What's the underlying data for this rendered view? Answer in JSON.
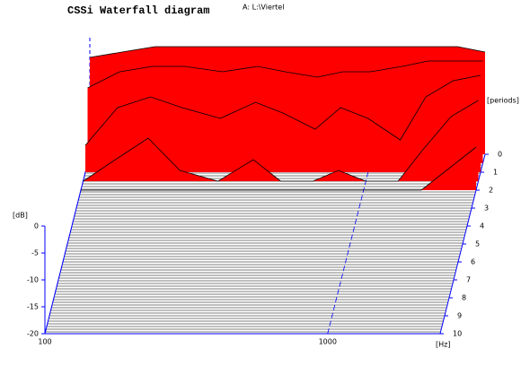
{
  "chart_data": {
    "type": "waterfall",
    "title": "CSSi Waterfall diagram",
    "subtitle": "A: L:\\Viertel",
    "x_label": "[Hz]",
    "y_label": "[dB]",
    "z_label": "[periods]",
    "x_scale": "log",
    "x": [
      100,
      130,
      170,
      220,
      300,
      400,
      500,
      650,
      800,
      1000,
      1300,
      1600,
      2000,
      2500
    ],
    "xlim": [
      100,
      2500
    ],
    "xticks": [
      100,
      1000
    ],
    "ylim": [
      -20,
      0
    ],
    "yticks": [
      -20,
      -15,
      -10,
      -5,
      0
    ],
    "zlim": [
      0,
      10
    ],
    "zticks": [
      0,
      1,
      2,
      3,
      4,
      5,
      6,
      7,
      8,
      9,
      10
    ],
    "color": "#ff0000",
    "axis_color": "#0000ff",
    "slices": [
      {
        "period": 0,
        "values": [
          -2,
          -1,
          0,
          0,
          0,
          0,
          0,
          0,
          0,
          0,
          0,
          0,
          0,
          -1
        ]
      },
      {
        "period": 0.5,
        "values": [
          -6,
          -3,
          -2,
          -2,
          -3,
          -2,
          -3,
          -4,
          -3,
          -3,
          -2,
          -1,
          -1,
          -1
        ]
      },
      {
        "period": 1,
        "values": [
          -15,
          -8,
          -6,
          -8,
          -10,
          -7,
          -9,
          -12,
          -8,
          -10,
          -14,
          -6,
          -3,
          -2
        ]
      },
      {
        "period": 1.5,
        "values": [
          -20,
          -16,
          -12,
          -18,
          -20,
          -16,
          -20,
          -20,
          -18,
          -20,
          -20,
          -14,
          -8,
          -5
        ]
      },
      {
        "period": 2,
        "values": [
          -20,
          -20,
          -20,
          -20,
          -20,
          -20,
          -20,
          -20,
          -20,
          -20,
          -20,
          -20,
          -16,
          -12
        ]
      }
    ]
  }
}
